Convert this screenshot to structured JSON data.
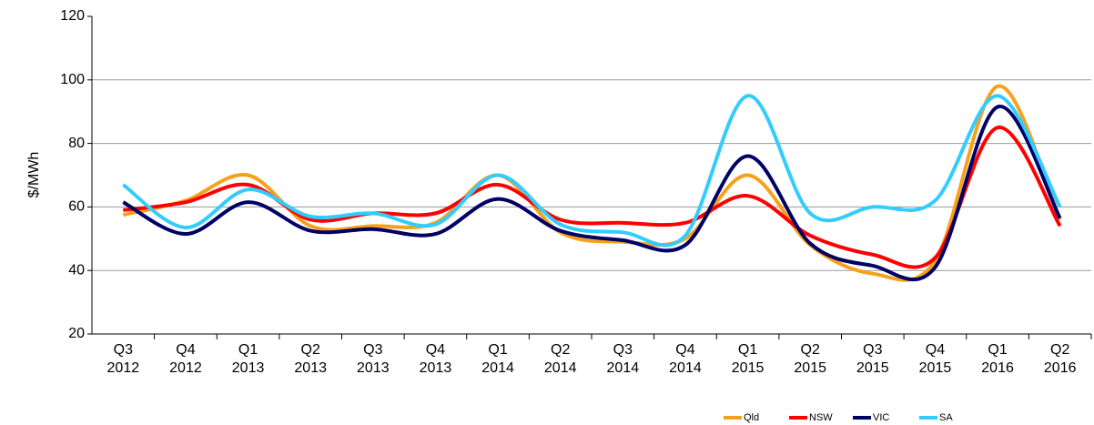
{
  "chart_data": {
    "type": "line",
    "y_label": "$/MWh",
    "categories": [
      "Q3 2012",
      "Q4 2012",
      "Q1 2013",
      "Q2 2013",
      "Q3 2013",
      "Q4 2013",
      "Q1 2014",
      "Q2 2014",
      "Q3 2014",
      "Q4 2014",
      "Q1 2015",
      "Q2 2015",
      "Q3 2015",
      "Q4 2015",
      "Q1 2016",
      "Q2 2016"
    ],
    "series": [
      {
        "name": "Qld",
        "color": "#f7a11a",
        "values": [
          57.5,
          62,
          70,
          54,
          54,
          55,
          70,
          52,
          49,
          50,
          70,
          48,
          39,
          43,
          98,
          56
        ]
      },
      {
        "name": "NSW",
        "color": "#ff0000",
        "values": [
          59,
          61.5,
          67,
          56,
          58,
          58,
          67,
          56,
          55,
          55,
          63.5,
          51,
          45,
          44,
          85,
          54
        ]
      },
      {
        "name": "VIC",
        "color": "#000066",
        "values": [
          61.5,
          51.5,
          61.5,
          52.5,
          53,
          51.5,
          62.5,
          52.5,
          49.5,
          48,
          76,
          48.5,
          41.5,
          41,
          91.5,
          56.5
        ]
      },
      {
        "name": "SA",
        "color": "#33ccff",
        "values": [
          67,
          53.5,
          65.5,
          57,
          58,
          54.5,
          70,
          54.5,
          52,
          51,
          95,
          58,
          60,
          62,
          95,
          60
        ]
      }
    ],
    "ylim": [
      20,
      120
    ],
    "yticks": [
      20,
      40,
      60,
      80,
      100,
      120
    ],
    "grid": true,
    "legend": "bottom-right"
  }
}
